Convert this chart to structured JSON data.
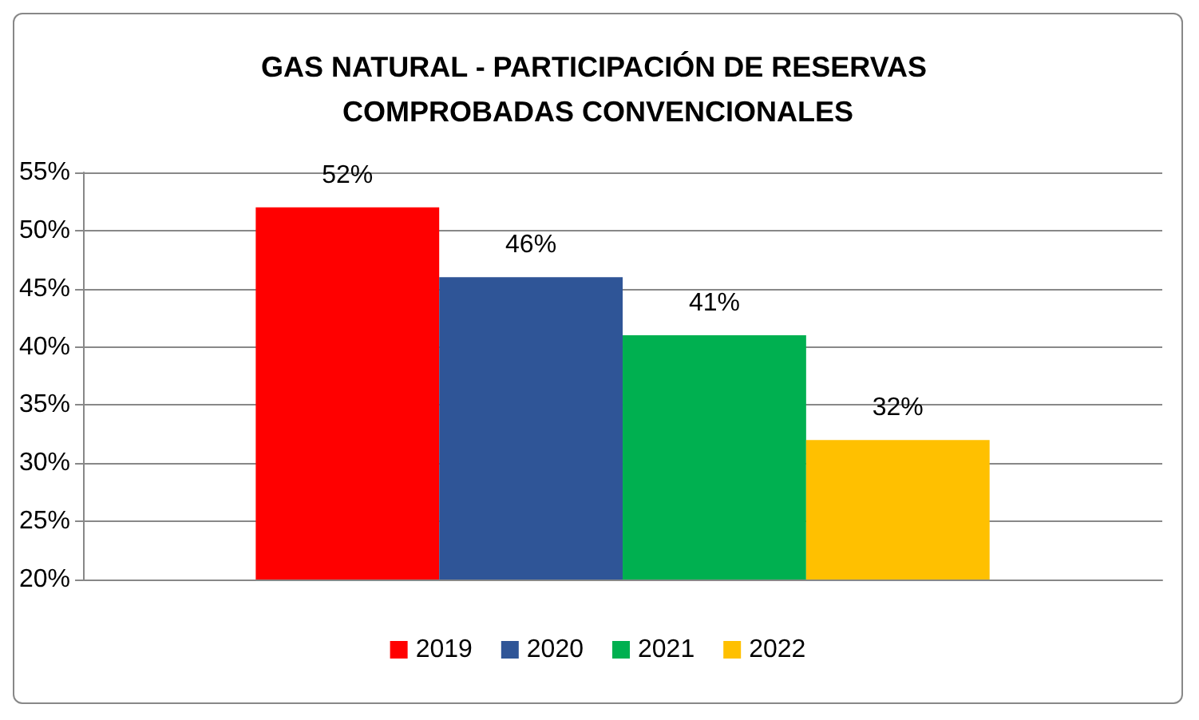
{
  "chart_data": {
    "type": "bar",
    "title": "GAS NATURAL - PARTICIPACIÓN DE RESERVAS COMPROBADAS CONVENCIONALES",
    "categories": [
      null
    ],
    "series": [
      {
        "name": "2019",
        "color": "#ff0000",
        "values": [
          52
        ],
        "value_labels": [
          "52%"
        ]
      },
      {
        "name": "2020",
        "color": "#2f5597",
        "values": [
          46
        ],
        "value_labels": [
          "46%"
        ]
      },
      {
        "name": "2021",
        "color": "#00b050",
        "values": [
          41
        ],
        "value_labels": [
          "41%"
        ]
      },
      {
        "name": "2022",
        "color": "#ffc000",
        "values": [
          32
        ],
        "value_labels": [
          "32%"
        ]
      }
    ],
    "ylim": [
      20,
      55
    ],
    "yticks": [
      {
        "value": 20,
        "label": "20%"
      },
      {
        "value": 25,
        "label": "25%"
      },
      {
        "value": 30,
        "label": "30%"
      },
      {
        "value": 35,
        "label": "35%"
      },
      {
        "value": 40,
        "label": "40%"
      },
      {
        "value": 45,
        "label": "45%"
      },
      {
        "value": 50,
        "label": "50%"
      },
      {
        "value": 55,
        "label": "55%"
      }
    ],
    "grid": "y",
    "legend": "bottom"
  }
}
